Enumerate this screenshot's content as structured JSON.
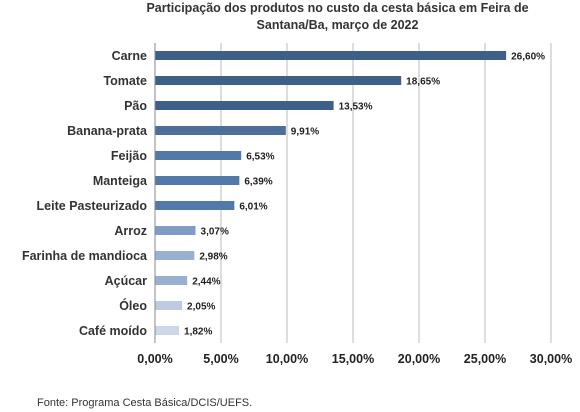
{
  "chart_data": {
    "type": "bar",
    "orientation": "horizontal",
    "title_line1": "Participação dos produtos no custo da cesta básica em Feira de",
    "title_line2": "Santana/Ba, março de 2022",
    "categories": [
      "Carne",
      "Tomate",
      "Pão",
      "Banana-prata",
      "Feijão",
      "Manteiga",
      "Leite Pasteurizado",
      "Arroz",
      "Farinha de mandioca",
      "Açúcar",
      "Óleo",
      "Café moído"
    ],
    "values": [
      26.6,
      18.65,
      13.53,
      9.91,
      6.53,
      6.39,
      6.01,
      3.07,
      2.98,
      2.44,
      2.05,
      1.82
    ],
    "value_labels": [
      "26,60%",
      "18,65%",
      "13,53%",
      "9,91%",
      "6,53%",
      "6,39%",
      "6,01%",
      "3,07%",
      "2,98%",
      "2,44%",
      "2,05%",
      "1,82%"
    ],
    "bar_colors": [
      "#3E5F88",
      "#3E5F88",
      "#3E5F88",
      "#4C6F9A",
      "#5279A8",
      "#5279A8",
      "#5279A8",
      "#7F9CC4",
      "#9AB0D0",
      "#9AB0D0",
      "#BCCBE0",
      "#CCD8E8"
    ],
    "xlim": [
      0,
      30
    ],
    "x_ticks": [
      0,
      5,
      10,
      15,
      20,
      25,
      30
    ],
    "x_tick_labels": [
      "0,00%",
      "5,00%",
      "10,00%",
      "15,00%",
      "20,00%",
      "25,00%",
      "30,00%"
    ],
    "grid": true,
    "gridline_color": "#BBBBBB"
  },
  "source": "Fonte: Programa Cesta Básica/DCIS/UEFS."
}
